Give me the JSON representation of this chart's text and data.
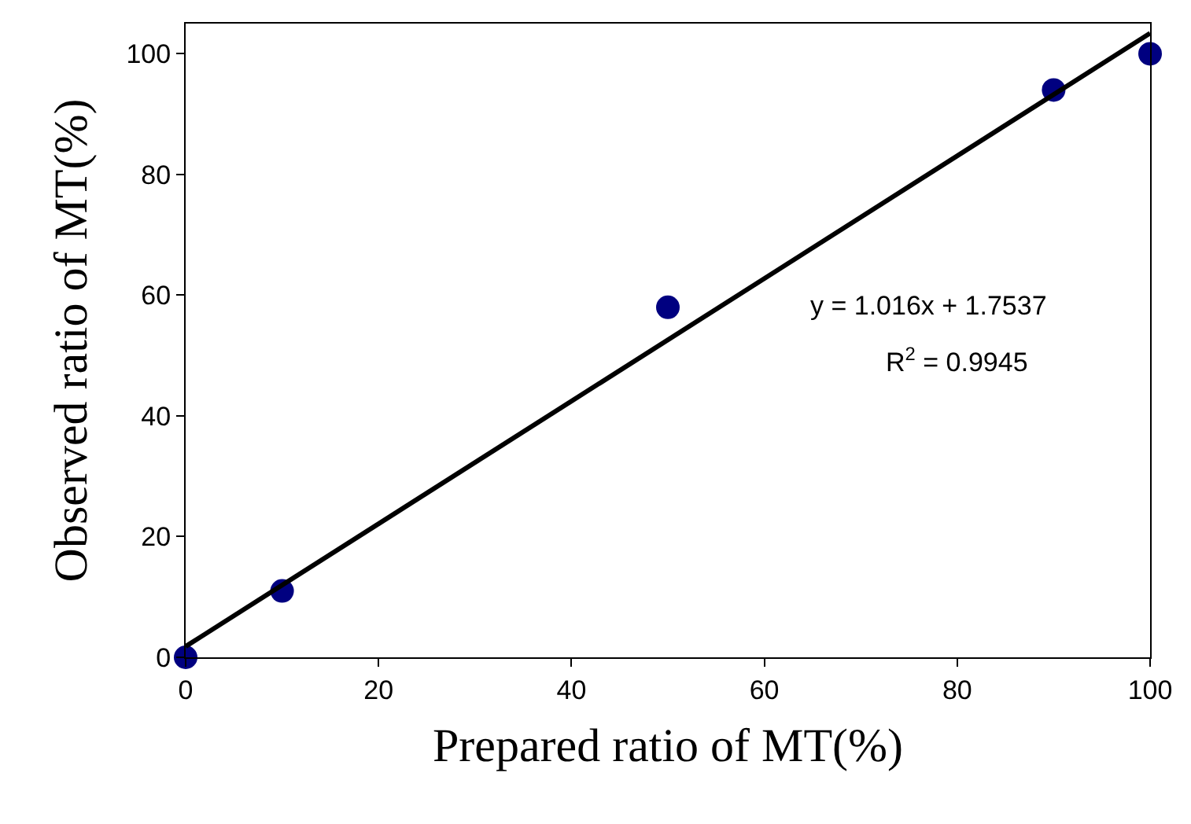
{
  "chart_data": {
    "type": "scatter",
    "xlabel": "Prepared ratio of MT(%)",
    "ylabel": "Observed ratio of MT(%)",
    "x": [
      0,
      10,
      50,
      90,
      100
    ],
    "series": [
      {
        "color": "#000080",
        "marker": "circle",
        "values": [
          0,
          11,
          58,
          94,
          100
        ]
      },
      {
        "type": "line",
        "color": "#000000",
        "x": [
          0,
          100
        ],
        "values": [
          1.8,
          103.4
        ],
        "line_style": "solid",
        "marker": "none"
      }
    ],
    "annotations": [
      "y = 1.016x + 1.7537",
      "R$^{2}$ = 0.9945"
    ],
    "xlim": [
      0,
      100
    ],
    "xticks": [
      0,
      20,
      40,
      60,
      80,
      100
    ],
    "ylim": [
      0,
      105
    ],
    "yticks": [
      0,
      20,
      40,
      60,
      80,
      100
    ],
    "legend": false
  }
}
